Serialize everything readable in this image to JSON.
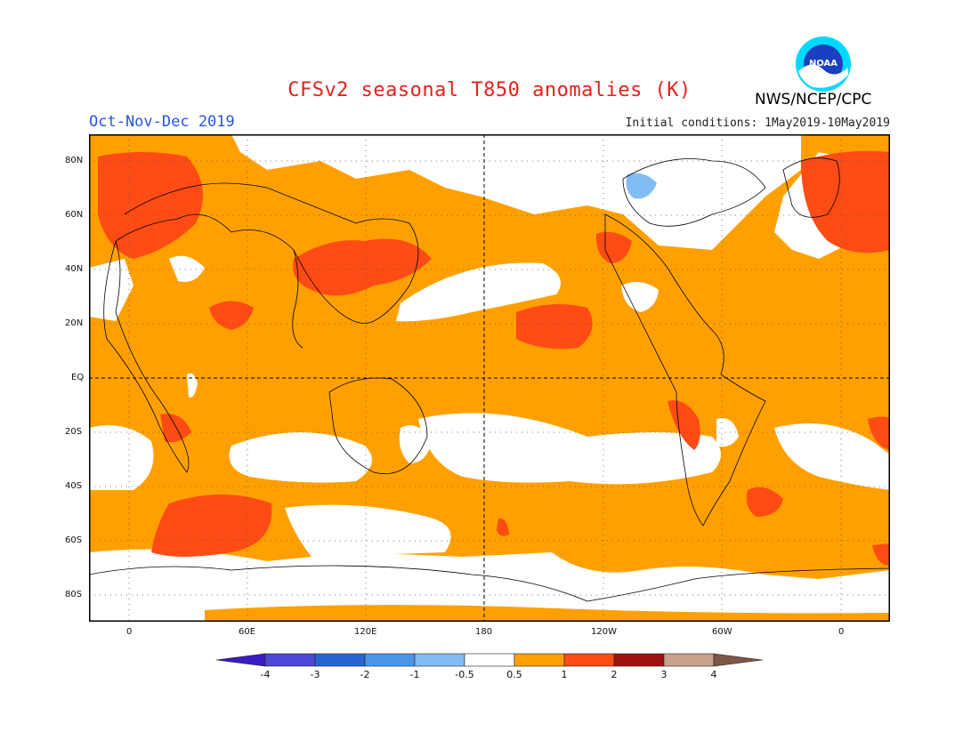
{
  "header": {
    "title": "CFSv2 seasonal T850 anomalies (K)",
    "season": "Oct-Nov-Dec 2019",
    "initial_conditions": "Initial conditions: 1May2019-10May2019",
    "agency": "NWS/NCEP/CPC",
    "logo_text": "NOAA"
  },
  "map": {
    "lat_labels": [
      "80N",
      "60N",
      "40N",
      "20N",
      "EQ",
      "20S",
      "40S",
      "60S",
      "80S"
    ],
    "lon_labels": [
      "0",
      "60E",
      "120E",
      "180",
      "120W",
      "60W",
      "0"
    ]
  },
  "colorbar": {
    "labels": [
      "-4",
      "-3",
      "-2",
      "-1",
      "-0.5",
      "0.5",
      "1",
      "2",
      "3",
      "4"
    ],
    "colors": [
      "#3a1ac4",
      "#4e46d6",
      "#2666d0",
      "#4a94ea",
      "#82bcf4",
      "#ffffff",
      "#ffa000",
      "#ff4b14",
      "#a01010",
      "#c8a08c",
      "#7e5646"
    ]
  },
  "legend_colors": {
    "warm_0_5_1": "#ffa000",
    "warm_1_2": "#ff4b14",
    "cold_neg1_neg0_5": "#82bcf4",
    "neutral": "#ffffff"
  }
}
